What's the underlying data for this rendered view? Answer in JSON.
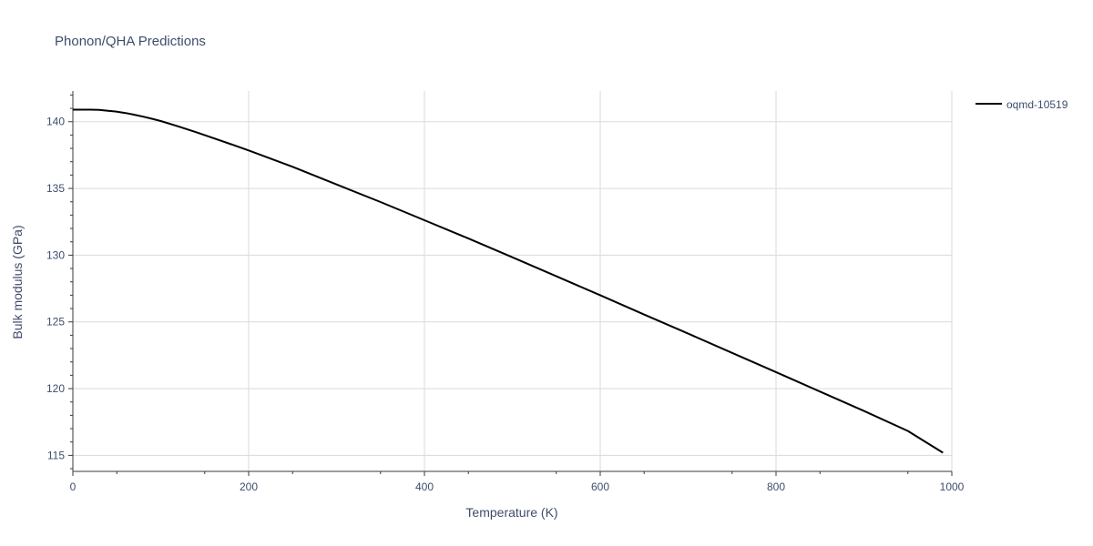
{
  "chart_data": {
    "type": "line",
    "title": "Phonon/QHA Predictions",
    "xlabel": "Temperature (K)",
    "ylabel": "Bulk modulus (GPa)",
    "xlim": [
      0,
      1000
    ],
    "ylim": [
      113.8,
      142.3
    ],
    "xticks": [
      0,
      200,
      400,
      600,
      800,
      1000
    ],
    "yticks": [
      115,
      120,
      125,
      130,
      135,
      140
    ],
    "grid": true,
    "legend_position": "top-right",
    "series": [
      {
        "name": "oqmd-10519",
        "color": "#000000",
        "x": [
          0,
          10,
          20,
          30,
          40,
          50,
          60,
          70,
          80,
          90,
          100,
          120,
          140,
          160,
          180,
          200,
          250,
          300,
          350,
          400,
          450,
          500,
          550,
          600,
          650,
          700,
          750,
          800,
          850,
          900,
          950,
          990
        ],
        "y": [
          140.9,
          140.9,
          140.9,
          140.88,
          140.82,
          140.75,
          140.65,
          140.52,
          140.38,
          140.22,
          140.05,
          139.65,
          139.22,
          138.77,
          138.31,
          137.85,
          136.62,
          135.3,
          133.98,
          132.62,
          131.25,
          129.84,
          128.42,
          127.0,
          125.55,
          124.12,
          122.68,
          121.24,
          119.78,
          118.33,
          116.83,
          115.2
        ]
      }
    ]
  }
}
